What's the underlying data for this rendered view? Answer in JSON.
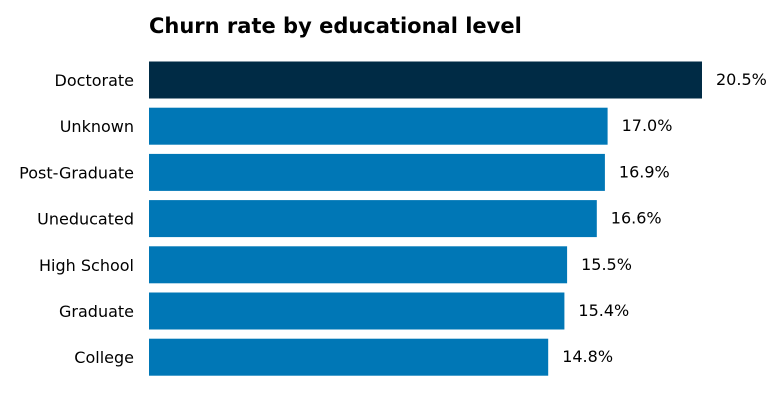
{
  "chart_data": {
    "type": "bar",
    "orientation": "horizontal",
    "title": "Churn rate by educational level",
    "xlabel": "",
    "ylabel": "",
    "categories": [
      "Doctorate",
      "Unknown",
      "Post-Graduate",
      "Uneducated",
      "High School",
      "Graduate",
      "College"
    ],
    "values": [
      20.5,
      17.0,
      16.9,
      16.6,
      15.5,
      15.4,
      14.8
    ],
    "value_labels": [
      "20.5%",
      "17.0%",
      "16.9%",
      "16.6%",
      "15.5%",
      "15.4%",
      "14.8%"
    ],
    "highlight_index": 0,
    "colors": {
      "highlight": "#002B45",
      "default": "#0077B6"
    },
    "xlim": [
      0,
      20.5
    ],
    "grid": false,
    "axes_visible": false
  }
}
